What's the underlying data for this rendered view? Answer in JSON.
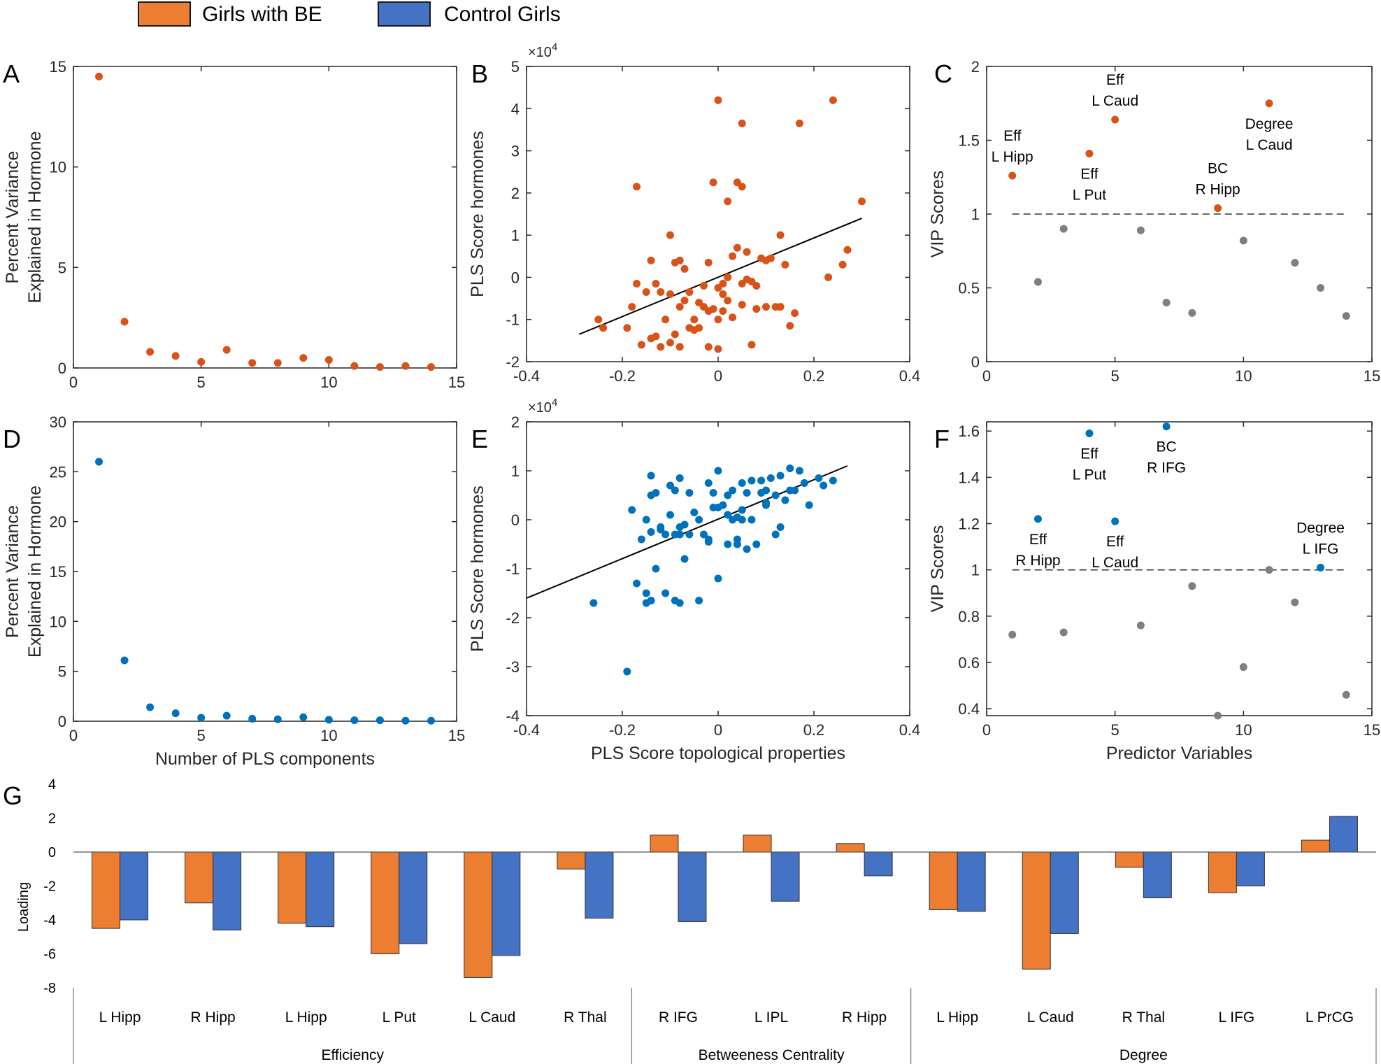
{
  "legend": {
    "items": [
      {
        "label": "Girls with BE",
        "color": "#ED7D31"
      },
      {
        "label": "Control Girls",
        "color": "#4472C4"
      }
    ]
  },
  "colors": {
    "be": "#D95319",
    "control": "#0072BD",
    "gray": "#7F7F7F",
    "bar_be": "#ED7D31",
    "bar_control": "#4472C4"
  },
  "chart_data": [
    {
      "panel": "A",
      "type": "scatter",
      "color": "#D95319",
      "xlabel": "",
      "ylabel": [
        "Percent Variance",
        "Explained in Hormone"
      ],
      "xlim": [
        0,
        15
      ],
      "ylim": [
        0,
        15
      ],
      "xticks": [
        0,
        5,
        10,
        15
      ],
      "yticks": [
        0,
        5,
        10,
        15
      ],
      "xtick_labels": [
        "0",
        "5",
        "10",
        "15"
      ],
      "ytick_labels": [
        "0",
        "5",
        "10",
        "15"
      ],
      "x": [
        1,
        2,
        3,
        4,
        5,
        6,
        7,
        8,
        9,
        10,
        11,
        12,
        13,
        14
      ],
      "y": [
        14.5,
        2.3,
        0.8,
        0.6,
        0.3,
        0.9,
        0.25,
        0.25,
        0.5,
        0.4,
        0.1,
        0.05,
        0.1,
        0.05
      ]
    },
    {
      "panel": "B",
      "type": "scatter",
      "color": "#D95319",
      "xlabel": "",
      "ylabel": [
        "PLS Score hormones"
      ],
      "xlim": [
        -0.4,
        0.4
      ],
      "ylim": [
        -2,
        5
      ],
      "exponent": "4",
      "xticks": [
        -0.4,
        -0.2,
        0,
        0.2,
        0.4
      ],
      "yticks": [
        -2,
        -1,
        0,
        1,
        2,
        3,
        4,
        5
      ],
      "xtick_labels": [
        "-0.4",
        "-0.2",
        "0",
        "0.2",
        "0.4"
      ],
      "ytick_labels": [
        "-2",
        "-1",
        "0",
        "1",
        "2",
        "3",
        "4",
        "5"
      ],
      "fit": [
        [
          -0.29,
          -1.35
        ],
        [
          0.3,
          1.4
        ]
      ],
      "x": [
        0.0,
        0.05,
        0.24,
        0.17,
        -0.17,
        -0.01,
        0.04,
        0.05,
        0.3,
        0.02,
        -0.1,
        0.13,
        -0.14,
        -0.09,
        -0.08,
        0.06,
        0.11,
        0.03,
        0.04,
        -0.02,
        0.02,
        -0.03,
        0.01,
        0.09,
        0.1,
        0.14,
        0.27,
        0.26,
        0.23,
        -0.17,
        -0.13,
        -0.12,
        -0.06,
        -0.1,
        -0.15,
        -0.18,
        -0.07,
        0.07,
        0.08,
        0.05,
        0.06,
        0.0,
        0.02,
        -0.01,
        0.01,
        0.08,
        -0.04,
        -0.02,
        0.0,
        0.03,
        0.12,
        0.16,
        -0.25,
        -0.24,
        -0.19,
        -0.11,
        -0.16,
        -0.14,
        -0.12,
        -0.1,
        -0.08,
        -0.06,
        -0.05,
        -0.04,
        -0.02,
        0.0,
        0.07,
        -0.09,
        -0.13,
        -0.08,
        0.15,
        0.1,
        0.13,
        -0.05,
        -0.03,
        0.05,
        0.01,
        -0.07
      ],
      "y": [
        4.2,
        3.65,
        4.2,
        3.65,
        2.15,
        2.25,
        2.25,
        2.15,
        1.8,
        1.8,
        1.0,
        1.0,
        0.4,
        0.35,
        0.4,
        0.6,
        0.45,
        0.5,
        0.7,
        0.35,
        0.0,
        -0.2,
        -0.15,
        0.45,
        0.4,
        0.3,
        0.65,
        0.3,
        0.0,
        -0.15,
        -0.15,
        -0.35,
        -0.35,
        -0.4,
        -0.35,
        -0.7,
        -0.55,
        -0.1,
        -0.2,
        -0.15,
        -0.05,
        -0.25,
        -0.55,
        -0.75,
        -0.8,
        -0.75,
        -0.6,
        -0.8,
        -1.0,
        -0.95,
        -0.7,
        -0.85,
        -1.0,
        -1.2,
        -1.2,
        -1.0,
        -1.6,
        -1.45,
        -1.65,
        -1.55,
        -1.65,
        -1.2,
        -1.25,
        -1.2,
        -1.65,
        -1.7,
        -1.6,
        -1.35,
        -1.4,
        -0.7,
        -1.15,
        -0.7,
        -0.7,
        -1.0,
        -0.7,
        -0.65,
        -0.4,
        0.2
      ]
    },
    {
      "panel": "C",
      "type": "scatter",
      "color": "#D95319",
      "gray": "#7F7F7F",
      "xlabel": "",
      "ylabel": [
        "VIP Scores"
      ],
      "xlim": [
        0,
        15
      ],
      "ylim": [
        0,
        2
      ],
      "threshold": 1,
      "xticks": [
        0,
        5,
        10,
        15
      ],
      "yticks": [
        0,
        0.5,
        1,
        1.5,
        2
      ],
      "xtick_labels": [
        "0",
        "5",
        "10",
        "15"
      ],
      "ytick_labels": [
        "0",
        "0.5",
        "1",
        "1.5",
        "2"
      ],
      "x": [
        1,
        2,
        3,
        4,
        5,
        6,
        7,
        8,
        9,
        10,
        11,
        12,
        13,
        14
      ],
      "y": [
        1.26,
        0.54,
        0.9,
        1.41,
        1.64,
        0.89,
        0.4,
        0.33,
        1.04,
        0.82,
        1.75,
        0.67,
        0.5,
        0.31
      ],
      "highlighted": [
        true,
        false,
        false,
        true,
        true,
        false,
        false,
        false,
        true,
        false,
        true,
        false,
        false,
        false
      ],
      "annotations": [
        {
          "x": 1,
          "lines": [
            "Eff",
            "L Hipp"
          ],
          "pos": "above"
        },
        {
          "x": 4,
          "lines": [
            "Eff",
            "L Put"
          ],
          "pos": "below"
        },
        {
          "x": 5,
          "lines": [
            "Eff",
            "L Caud"
          ],
          "pos": "above"
        },
        {
          "x": 9,
          "lines": [
            "BC",
            "R Hipp"
          ],
          "pos": "above"
        },
        {
          "x": 11,
          "lines": [
            "Degree",
            "L Caud"
          ],
          "pos": "below"
        }
      ]
    },
    {
      "panel": "D",
      "type": "scatter",
      "color": "#0072BD",
      "xlabel": "Number of PLS components",
      "ylabel": [
        "Percent Variance",
        "Explained in Hormone"
      ],
      "xlim": [
        0,
        15
      ],
      "ylim": [
        0,
        30
      ],
      "xticks": [
        0,
        5,
        10,
        15
      ],
      "yticks": [
        0,
        5,
        10,
        15,
        20,
        25,
        30
      ],
      "xtick_labels": [
        "0",
        "5",
        "10",
        "15"
      ],
      "ytick_labels": [
        "0",
        "5",
        "10",
        "15",
        "20",
        "25",
        "30"
      ],
      "x": [
        1,
        2,
        3,
        4,
        5,
        6,
        7,
        8,
        9,
        10,
        11,
        12,
        13,
        14
      ],
      "y": [
        26,
        6.1,
        1.4,
        0.8,
        0.35,
        0.55,
        0.25,
        0.2,
        0.4,
        0.15,
        0.1,
        0.1,
        0.05,
        0.05
      ]
    },
    {
      "panel": "E",
      "type": "scatter",
      "color": "#0072BD",
      "xlabel": "PLS Score topological properties",
      "ylabel": [
        "PLS Score hormones"
      ],
      "xlim": [
        -0.4,
        0.4
      ],
      "ylim": [
        -4,
        2
      ],
      "exponent": "4",
      "xticks": [
        -0.4,
        -0.2,
        0,
        0.2,
        0.4
      ],
      "yticks": [
        -4,
        -3,
        -2,
        -1,
        0,
        1,
        2
      ],
      "xtick_labels": [
        "-0.4",
        "-0.2",
        "0",
        "0.2",
        "0.4"
      ],
      "ytick_labels": [
        "-4",
        "-3",
        "-2",
        "-1",
        "0",
        "1",
        "2"
      ],
      "fit": [
        [
          -0.4,
          -1.6
        ],
        [
          0.27,
          1.1
        ]
      ],
      "x": [
        -0.19,
        -0.26,
        -0.15,
        -0.14,
        -0.13,
        -0.11,
        -0.09,
        -0.08,
        -0.07,
        -0.04,
        -0.02,
        0.0,
        0.02,
        0.04,
        0.06,
        0.08,
        0.1,
        0.12,
        0.13,
        0.14,
        0.16,
        0.19,
        0.22,
        0.24,
        -0.15,
        -0.14,
        -0.1,
        -0.08,
        -0.06,
        -0.02,
        0.0,
        0.03,
        0.05,
        0.07,
        0.09,
        0.11,
        0.13,
        0.15,
        0.17,
        -0.18,
        -0.13,
        -0.12,
        -0.11,
        -0.09,
        -0.08,
        -0.05,
        -0.04,
        0.0,
        0.02,
        0.04,
        0.06,
        0.1,
        0.12,
        0.15,
        0.18,
        0.21,
        -0.16,
        -0.14,
        -0.12,
        -0.1,
        -0.08,
        -0.06,
        -0.02,
        -0.01,
        0.01,
        0.03,
        0.05,
        0.07,
        0.1,
        0.02,
        0.05,
        0.09,
        -0.15,
        -0.14,
        -0.09,
        -0.07,
        -0.03,
        0.04,
        -0.17,
        -0.08,
        -0.01
      ],
      "y": [
        -3.1,
        -1.7,
        -1.7,
        -1.65,
        -1.0,
        -1.5,
        -1.65,
        -1.7,
        -0.8,
        -1.65,
        -0.45,
        -1.2,
        -0.5,
        -0.4,
        -0.6,
        -0.5,
        0.3,
        0.5,
        -0.15,
        0.4,
        0.6,
        0.3,
        0.7,
        0.8,
        -1.5,
        0.9,
        0.7,
        0.85,
        0.55,
        0.75,
        1.0,
        0.6,
        0.75,
        0.8,
        0.55,
        0.85,
        0.9,
        1.05,
        1.0,
        0.2,
        0.55,
        -0.15,
        -0.3,
        -0.3,
        -0.3,
        0.15,
        0.0,
        0.25,
        0.5,
        0.05,
        0.55,
        0.6,
        -0.3,
        0.6,
        0.75,
        0.85,
        -0.4,
        -0.25,
        -0.2,
        0.1,
        -0.3,
        -0.3,
        -0.4,
        0.25,
        0.3,
        0.0,
        0.0,
        0.0,
        0.35,
        0.1,
        0.2,
        0.8,
        0.0,
        0.5,
        0.6,
        -0.1,
        -0.3,
        -0.5,
        -1.3,
        -0.15,
        0.55
      ]
    },
    {
      "panel": "F",
      "type": "scatter",
      "color": "#0072BD",
      "gray": "#7F7F7F",
      "xlabel": "Predictor Variables",
      "ylabel": [
        "VIP Scores"
      ],
      "xlim": [
        0,
        15
      ],
      "ylim": [
        0.37,
        1.64
      ],
      "threshold": 1,
      "xticks": [
        0,
        5,
        10,
        15
      ],
      "yticks": [
        0.4,
        0.6,
        0.8,
        1,
        1.2,
        1.4,
        1.6
      ],
      "xtick_labels": [
        "0",
        "5",
        "10",
        "15"
      ],
      "ytick_labels": [
        "0.4",
        "0.6",
        "0.8",
        "1",
        "1.2",
        "1.4",
        "1.6"
      ],
      "x": [
        1,
        2,
        3,
        4,
        5,
        6,
        7,
        8,
        9,
        10,
        11,
        12,
        13,
        14
      ],
      "y": [
        0.72,
        1.22,
        0.73,
        1.59,
        1.21,
        0.76,
        1.62,
        0.93,
        0.37,
        0.58,
        1.0,
        0.86,
        1.01,
        0.46
      ],
      "highlighted": [
        false,
        true,
        false,
        true,
        true,
        false,
        true,
        false,
        false,
        false,
        false,
        false,
        true,
        false
      ],
      "annotations": [
        {
          "x": 2,
          "lines": [
            "Eff",
            "R Hipp"
          ],
          "pos": "below"
        },
        {
          "x": 4,
          "lines": [
            "Eff",
            "L Put"
          ],
          "pos": "below"
        },
        {
          "x": 5,
          "lines": [
            "Eff",
            "L Caud"
          ],
          "pos": "below"
        },
        {
          "x": 7,
          "lines": [
            "BC",
            "R IFG"
          ],
          "pos": "below"
        },
        {
          "x": 13,
          "lines": [
            "Degree",
            "L IFG"
          ],
          "pos": "above"
        }
      ]
    },
    {
      "panel": "G",
      "type": "bar",
      "ylabel": "Loading",
      "ylim": [
        -8,
        4
      ],
      "yticks": [
        -8,
        -6,
        -4,
        -2,
        0,
        2,
        4
      ],
      "ytick_labels": [
        "-8",
        "-6",
        "-4",
        "-2",
        "0",
        "2",
        "4"
      ],
      "categories": [
        "L Hipp",
        "R Hipp",
        "L Hipp",
        "L Put",
        "L Caud",
        "R Thal",
        "R IFG",
        "L IPL",
        "R Hipp",
        "L Hipp",
        "L Caud",
        "R Thal",
        "L IFG",
        "L PrCG"
      ],
      "groups": [
        {
          "label": "Efficiency",
          "count": 6
        },
        {
          "label": "Betweeness Centrality",
          "count": 3
        },
        {
          "label": "Degree",
          "count": 5
        }
      ],
      "series": [
        {
          "name": "Girls with BE",
          "color": "#ED7D31",
          "values": [
            -4.5,
            -3.0,
            -4.2,
            -6.0,
            -7.4,
            -1.0,
            1.0,
            1.0,
            0.5,
            -3.4,
            -6.9,
            -0.9,
            -2.4,
            0.7
          ]
        },
        {
          "name": "Control Girls",
          "color": "#4472C4",
          "values": [
            -4.0,
            -4.6,
            -4.4,
            -5.4,
            -6.1,
            -3.9,
            -4.1,
            -2.9,
            -1.4,
            -3.5,
            -4.8,
            -2.7,
            -2.0,
            2.1
          ]
        }
      ]
    }
  ]
}
